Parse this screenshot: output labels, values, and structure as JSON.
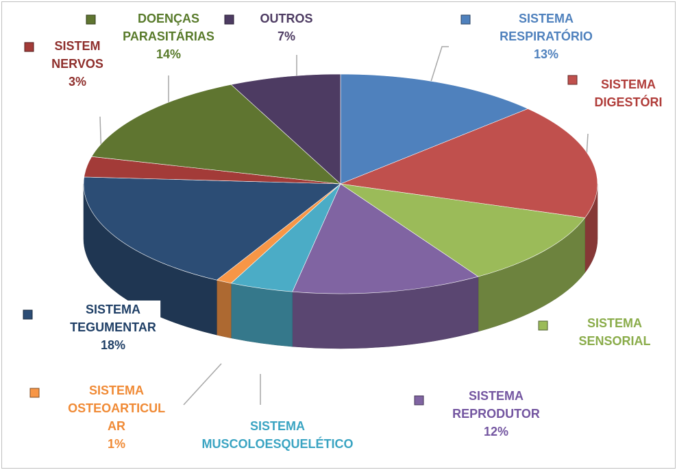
{
  "chart_data": {
    "type": "pie3d",
    "categories": [
      "SISTEMA RESPIRATÓRIO",
      "SISTEMA DIGESTÓRI",
      "SISTEMA SENSORIAL",
      "SISTEMA REPRODUTOR",
      "SISTEMA MUSCOLOESQUELÉTICO",
      "SISTEMA OSTEOARTICUL AR",
      "SISTEMA TEGUMENTAR",
      "SISTEM NERVOS",
      "DOENÇAS PARASITÁRIAS",
      "OUTROS"
    ],
    "values": [
      13,
      17,
      11,
      12,
      4,
      1,
      18,
      3,
      14,
      7
    ],
    "value_labels": [
      "13%",
      null,
      null,
      "12%",
      null,
      "1%",
      "18%",
      "3%",
      "14%",
      "7%"
    ],
    "colors": [
      "#4f81bd",
      "#c0504d",
      "#9bbb59",
      "#8064a2",
      "#4bacc6",
      "#f79646",
      "#2c4d75",
      "#a33b38",
      "#5f7530",
      "#4d3b62"
    ],
    "label_colors": [
      "#4f81bd",
      "#b03c39",
      "#8aac4a",
      "#7355a0",
      "#3aa4c2",
      "#f08a35",
      "#1f3f66",
      "#8e2e2b",
      "#587a2a",
      "#4d3b62"
    ]
  }
}
